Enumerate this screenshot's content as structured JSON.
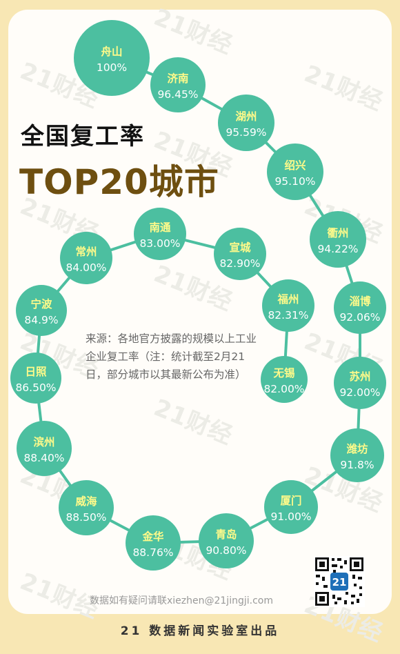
{
  "title_line1": "全国复工率",
  "title_line2": "TOP20城市",
  "source_note": "来源：各地官方披露的规模以上工业企业复工率（注：统计截至2月21日，部分城市以其最新公布为准）",
  "contact": "数据如有疑问请联xiezhen@21jingji.com",
  "footer": "21 数据新闻实验室出品",
  "watermark": "21财经",
  "qr_badge": "21",
  "colors": {
    "background": "#f8e7b4",
    "bubble": "#4cbfa0",
    "bubble_name": "#fffa8a",
    "connector": "#4cbfa0",
    "title_dark": "#111111",
    "title_brown": "#6e4f10"
  },
  "chart_data": {
    "type": "bubble-ranking",
    "title": "全国复工率 TOP20城市",
    "unit": "%",
    "categories": [
      "舟山",
      "济南",
      "湖州",
      "绍兴",
      "衢州",
      "淄博",
      "苏州",
      "潍坊",
      "厦门",
      "青岛",
      "金华",
      "威海",
      "滨州",
      "日照",
      "宁波",
      "常州",
      "南通",
      "宣城",
      "福州",
      "无锡"
    ],
    "labels": [
      "100%",
      "96.45%",
      "95.59%",
      "95.10%",
      "94.22%",
      "92.06%",
      "92.00%",
      "91.8%",
      "91.00%",
      "90.80%",
      "88.76%",
      "88.50%",
      "88.40%",
      "86.50%",
      "84.9%",
      "84.00%",
      "83.00%",
      "82.90%",
      "82.31%",
      "82.00%"
    ],
    "values": [
      100,
      96.45,
      95.59,
      95.1,
      94.22,
      92.06,
      92.0,
      91.8,
      91.0,
      90.8,
      88.76,
      88.5,
      88.4,
      86.5,
      84.9,
      84.0,
      83.0,
      82.9,
      82.31,
      82.0
    ]
  }
}
